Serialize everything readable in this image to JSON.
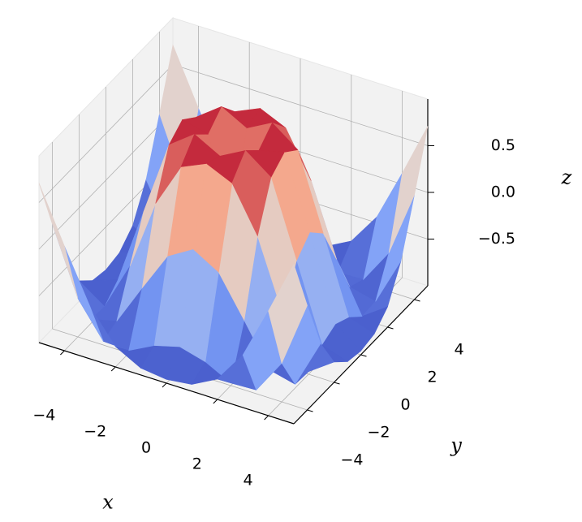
{
  "chart_data": {
    "type": "surface",
    "colormap": "coolwarm",
    "x": [
      -5,
      -4,
      -3,
      -2,
      -1,
      0,
      1,
      2,
      3,
      4,
      5
    ],
    "y": [
      -5,
      -4,
      -3,
      -2,
      -1,
      0,
      1,
      2,
      3,
      4,
      5
    ],
    "z": [
      [
        0.709,
        0.12,
        -0.437,
        -0.782,
        -0.926,
        -0.959,
        -0.926,
        -0.782,
        -0.437,
        0.12,
        0.709
      ],
      [
        0.12,
        -0.586,
        -0.959,
        -0.971,
        -0.831,
        -0.757,
        -0.831,
        -0.971,
        -0.959,
        -0.586,
        0.12
      ],
      [
        -0.437,
        -0.959,
        -0.892,
        -0.448,
        -0.02,
        0.141,
        -0.02,
        -0.448,
        -0.892,
        -0.959,
        -0.437
      ],
      [
        -0.782,
        -0.971,
        -0.448,
        0.308,
        0.787,
        0.909,
        0.787,
        0.308,
        -0.448,
        -0.971,
        -0.782
      ],
      [
        -0.926,
        -0.831,
        -0.02,
        0.787,
        0.988,
        0.841,
        0.988,
        0.787,
        -0.02,
        -0.831,
        -0.926
      ],
      [
        -0.959,
        -0.757,
        0.141,
        0.909,
        0.841,
        0,
        0.841,
        0.909,
        0.141,
        -0.757,
        -0.959
      ],
      [
        -0.926,
        -0.831,
        -0.02,
        0.787,
        0.988,
        0.841,
        0.988,
        0.787,
        -0.02,
        -0.831,
        -0.926
      ],
      [
        -0.782,
        -0.971,
        -0.448,
        0.308,
        0.787,
        0.909,
        0.787,
        0.308,
        -0.448,
        -0.971,
        -0.782
      ],
      [
        -0.437,
        -0.959,
        -0.892,
        -0.448,
        -0.02,
        0.141,
        -0.02,
        -0.448,
        -0.892,
        -0.959,
        -0.437
      ],
      [
        0.12,
        -0.586,
        -0.959,
        -0.971,
        -0.831,
        -0.757,
        -0.831,
        -0.971,
        -0.959,
        -0.586,
        0.12
      ],
      [
        0.709,
        0.12,
        -0.437,
        -0.782,
        -0.926,
        -0.959,
        -0.926,
        -0.782,
        -0.437,
        0.12,
        0.709
      ]
    ],
    "xlim": [
      -5,
      5
    ],
    "ylim": [
      -5,
      5
    ],
    "zlim": [
      -1,
      1
    ],
    "xticks": [
      {
        "value": -4,
        "label": "−4"
      },
      {
        "value": -2,
        "label": "−2"
      },
      0,
      2,
      4
    ],
    "yticks": [
      {
        "value": -4,
        "label": "−4"
      },
      {
        "value": -2,
        "label": "−2"
      },
      0,
      2,
      4
    ],
    "zticks": [
      {
        "value": -0.5,
        "label": "−0.5"
      },
      {
        "value": 0,
        "label": "0.0"
      },
      0.5
    ],
    "xlabel": "x",
    "ylabel": "y",
    "zlabel": "z",
    "grid": true
  }
}
